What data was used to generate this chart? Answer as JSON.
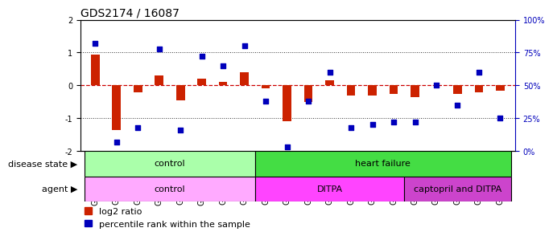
{
  "title": "GDS2174 / 16087",
  "samples": [
    "GSM111772",
    "GSM111823",
    "GSM111824",
    "GSM111825",
    "GSM111826",
    "GSM111827",
    "GSM111828",
    "GSM111829",
    "GSM111861",
    "GSM111863",
    "GSM111864",
    "GSM111865",
    "GSM111866",
    "GSM111867",
    "GSM111869",
    "GSM111870",
    "GSM112038",
    "GSM112039",
    "GSM112040",
    "GSM112041"
  ],
  "log2_ratio": [
    0.95,
    -1.35,
    -0.2,
    0.3,
    -0.45,
    0.2,
    0.1,
    0.4,
    -0.1,
    -1.1,
    -0.5,
    0.15,
    -0.3,
    -0.3,
    -0.25,
    -0.35,
    0.02,
    -0.25,
    -0.2,
    -0.15
  ],
  "percentile_rank": [
    82,
    7,
    18,
    78,
    16,
    72,
    65,
    80,
    38,
    3,
    38,
    60,
    18,
    20,
    22,
    22,
    50,
    35,
    60,
    25
  ],
  "disease_state_groups": [
    {
      "label": "control",
      "start": 0,
      "end": 8,
      "color": "#aaffaa"
    },
    {
      "label": "heart failure",
      "start": 8,
      "end": 20,
      "color": "#44dd44"
    }
  ],
  "agent_groups": [
    {
      "label": "control",
      "start": 0,
      "end": 8,
      "color": "#ffaaff"
    },
    {
      "label": "DITPA",
      "start": 8,
      "end": 15,
      "color": "#ff44ff"
    },
    {
      "label": "captopril and DITPA",
      "start": 15,
      "end": 20,
      "color": "#cc44cc"
    }
  ],
  "ylim_left": [
    -2,
    2
  ],
  "bar_color": "#CC2200",
  "dot_color": "#0000BB",
  "hline_color": "#CC0000",
  "dotted_color": "#333333",
  "title_fontsize": 10,
  "tick_fontsize": 7,
  "label_fontsize": 8,
  "annot_fontsize": 8
}
